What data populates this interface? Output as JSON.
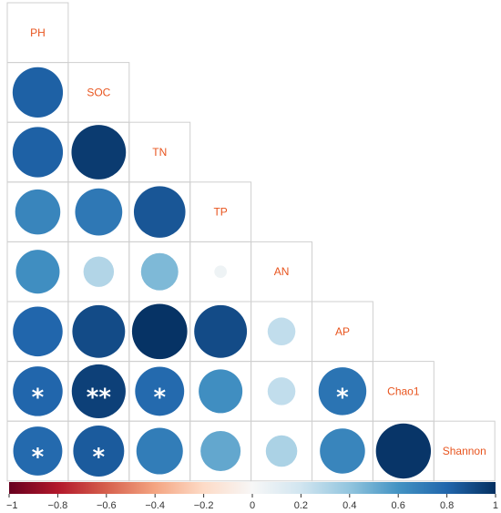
{
  "chart_data": {
    "type": "heatmap",
    "subtype": "correlation-matrix-circles-lower-triangle",
    "variables": [
      "PH",
      "SOC",
      "TN",
      "TP",
      "AN",
      "AP",
      "Chao1",
      "Shannon"
    ],
    "matrix": [
      [
        1.0,
        0.82,
        0.82,
        0.66,
        0.62,
        0.8,
        0.8,
        0.78
      ],
      [
        0.82,
        1.0,
        0.96,
        0.72,
        0.3,
        0.9,
        0.94,
        0.84
      ],
      [
        0.82,
        0.96,
        1.0,
        0.86,
        0.45,
        0.99,
        0.78,
        0.7
      ],
      [
        0.66,
        0.72,
        0.86,
        1.0,
        0.05,
        0.9,
        0.62,
        0.52
      ],
      [
        0.62,
        0.3,
        0.45,
        0.05,
        1.0,
        0.25,
        0.25,
        0.32
      ],
      [
        0.8,
        0.9,
        0.99,
        0.9,
        0.25,
        1.0,
        0.74,
        0.66
      ],
      [
        0.8,
        0.94,
        0.78,
        0.62,
        0.25,
        0.74,
        1.0,
        0.98
      ],
      [
        0.78,
        0.84,
        0.7,
        0.52,
        0.32,
        0.66,
        0.98,
        1.0
      ]
    ],
    "significance": [
      {
        "row": "Chao1",
        "col": "PH",
        "mark": "*"
      },
      {
        "row": "Chao1",
        "col": "SOC",
        "mark": "**"
      },
      {
        "row": "Chao1",
        "col": "TN",
        "mark": "*"
      },
      {
        "row": "Chao1",
        "col": "AP",
        "mark": "*"
      },
      {
        "row": "Shannon",
        "col": "PH",
        "mark": "*"
      },
      {
        "row": "Shannon",
        "col": "SOC",
        "mark": "*"
      }
    ],
    "color_scale": {
      "range": [
        -1,
        1
      ],
      "ticks": [
        "−1",
        "−0.8",
        "−0.6",
        "−0.4",
        "−0.2",
        "0",
        "0.2",
        "0.4",
        "0.6",
        "0.8",
        "1"
      ],
      "tick_values": [
        -1,
        -0.8,
        -0.6,
        -0.4,
        -0.2,
        0,
        0.2,
        0.4,
        0.6,
        0.8,
        1
      ],
      "stops": [
        "#67001f",
        "#b2182b",
        "#d6604d",
        "#f4a582",
        "#fddbc7",
        "#f7f7f7",
        "#d1e5f0",
        "#92c5de",
        "#4393c3",
        "#2166ac",
        "#053061"
      ]
    },
    "label_color": "#e8551f"
  }
}
